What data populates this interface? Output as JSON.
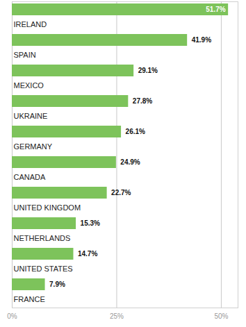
{
  "chart_data": {
    "type": "bar",
    "orientation": "horizontal",
    "categories": [
      "IRELAND",
      "SPAIN",
      "MEXICO",
      "UKRAINE",
      "GERMANY",
      "CANADA",
      "UNITED KINGDOM",
      "NETHERLANDS",
      "UNITED STATES",
      "FRANCE"
    ],
    "values": [
      51.7,
      41.9,
      29.1,
      27.8,
      26.1,
      24.9,
      22.7,
      15.3,
      14.7,
      7.9
    ],
    "value_labels": [
      "51.7%",
      "41.9%",
      "29.1%",
      "27.8%",
      "26.1%",
      "24.9%",
      "22.7%",
      "15.3%",
      "14.7%",
      "7.9%"
    ],
    "data_labels": true,
    "color": "#7dc35b",
    "xlim": [
      0,
      54
    ],
    "xticks": [
      {
        "value": 0,
        "label": "0%"
      },
      {
        "value": 25,
        "label": "25%"
      },
      {
        "value": 50,
        "label": "50%"
      }
    ],
    "grid": true,
    "tick_labels": "x"
  }
}
